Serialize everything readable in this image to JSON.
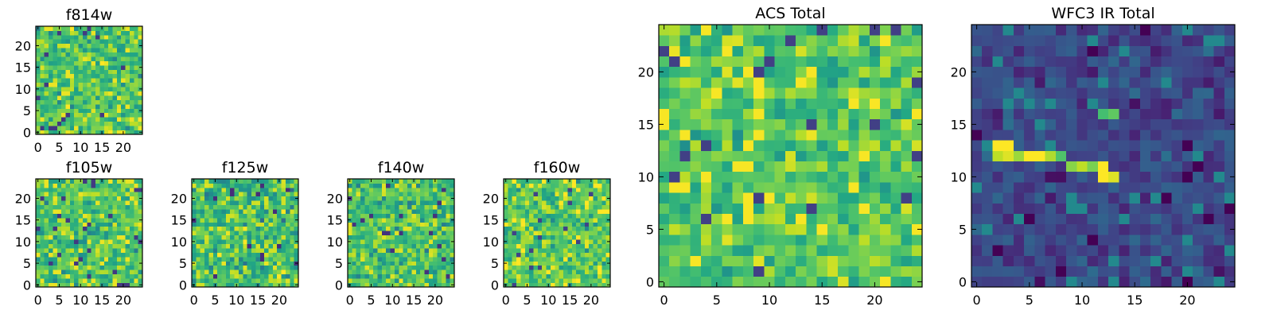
{
  "chart_data": [
    {
      "type": "heatmap",
      "title": "f814w",
      "grid_size": 25,
      "colormap": "viridis",
      "xticks": [
        "0",
        "5",
        "10",
        "15",
        "20"
      ],
      "yticks": [
        "0",
        "5",
        "10",
        "15",
        "20"
      ],
      "value_range": [
        0,
        1
      ],
      "value_level": 0.72,
      "value_spread": 0.22,
      "seed": 11
    },
    {
      "type": "heatmap",
      "title": "f105w",
      "grid_size": 25,
      "colormap": "viridis",
      "xticks": [
        "0",
        "5",
        "10",
        "15",
        "20"
      ],
      "yticks": [
        "0",
        "5",
        "10",
        "15",
        "20"
      ],
      "value_range": [
        0,
        1
      ],
      "value_level": 0.72,
      "value_spread": 0.2,
      "seed": 23
    },
    {
      "type": "heatmap",
      "title": "f125w",
      "grid_size": 25,
      "colormap": "viridis",
      "xticks": [
        "0",
        "5",
        "10",
        "15",
        "20"
      ],
      "yticks": [
        "0",
        "5",
        "10",
        "15",
        "20"
      ],
      "value_range": [
        0,
        1
      ],
      "value_level": 0.68,
      "value_spread": 0.24,
      "seed": 37
    },
    {
      "type": "heatmap",
      "title": "f140w",
      "grid_size": 25,
      "colormap": "viridis",
      "xticks": [
        "0",
        "5",
        "10",
        "15",
        "20"
      ],
      "yticks": [
        "0",
        "5",
        "10",
        "15",
        "20"
      ],
      "value_range": [
        0,
        1
      ],
      "value_level": 0.7,
      "value_spread": 0.22,
      "seed": 41
    },
    {
      "type": "heatmap",
      "title": "f160w",
      "grid_size": 25,
      "colormap": "viridis",
      "xticks": [
        "0",
        "5",
        "10",
        "15",
        "20"
      ],
      "yticks": [
        "0",
        "5",
        "10",
        "15",
        "20"
      ],
      "value_range": [
        0,
        1
      ],
      "value_level": 0.75,
      "value_spread": 0.2,
      "seed": 53
    },
    {
      "type": "heatmap",
      "title": "ACS Total",
      "grid_size": 25,
      "colormap": "viridis",
      "xticks": [
        "0",
        "5",
        "10",
        "15",
        "20"
      ],
      "yticks": [
        "0",
        "5",
        "10",
        "15",
        "20"
      ],
      "value_range": [
        0,
        1
      ],
      "value_level": 0.74,
      "value_spread": 0.2,
      "seed": 67
    },
    {
      "type": "heatmap",
      "title": "WFC3 IR Total",
      "grid_size": 25,
      "colormap": "viridis",
      "xticks": [
        "0",
        "5",
        "10",
        "15",
        "20"
      ],
      "yticks": [
        "0",
        "5",
        "10",
        "15",
        "20"
      ],
      "value_range": [
        0,
        1
      ],
      "value_level": 0.22,
      "value_spread": 0.12,
      "seed": 79,
      "highlights": [
        {
          "x": 2,
          "y": 13,
          "value": 1.0
        },
        {
          "x": 3,
          "y": 13,
          "value": 1.0
        },
        {
          "x": 2,
          "y": 12,
          "value": 0.9
        },
        {
          "x": 3,
          "y": 12,
          "value": 0.95
        },
        {
          "x": 4,
          "y": 12,
          "value": 0.85
        },
        {
          "x": 5,
          "y": 12,
          "value": 1.0
        },
        {
          "x": 6,
          "y": 12,
          "value": 1.0
        },
        {
          "x": 7,
          "y": 12,
          "value": 0.88
        },
        {
          "x": 8,
          "y": 12,
          "value": 0.72
        },
        {
          "x": 9,
          "y": 11,
          "value": 0.82
        },
        {
          "x": 10,
          "y": 11,
          "value": 0.9
        },
        {
          "x": 11,
          "y": 11,
          "value": 0.8
        },
        {
          "x": 12,
          "y": 11,
          "value": 1.0
        },
        {
          "x": 12,
          "y": 10,
          "value": 1.0
        },
        {
          "x": 13,
          "y": 10,
          "value": 0.95
        },
        {
          "x": 12,
          "y": 16,
          "value": 0.7
        },
        {
          "x": 13,
          "y": 16,
          "value": 0.75
        }
      ]
    }
  ]
}
